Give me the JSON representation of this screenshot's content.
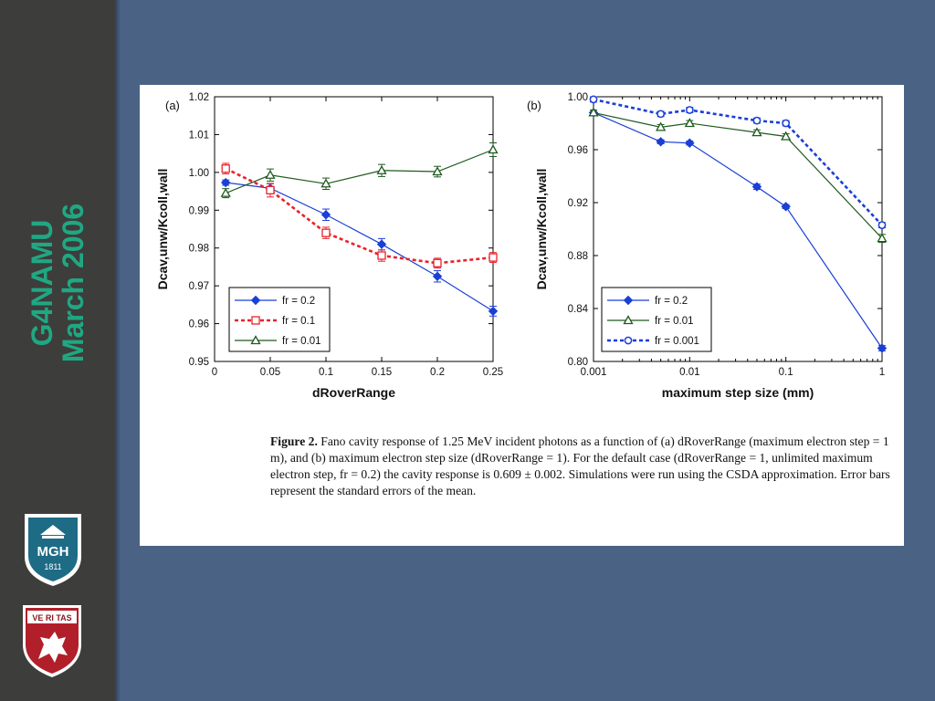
{
  "slide": {
    "vertical_title_line1": "G4NAMU",
    "vertical_title_line2": "March 2006",
    "mgh_logo_text": "MGH",
    "mgh_logo_year": "1811",
    "harvard_logo_text": "VE RI TAS",
    "colors": {
      "background": "#4a6385",
      "sidebar": "#3d3d3b",
      "title": "#1fa882"
    }
  },
  "caption": {
    "figure_label": "Figure 2.",
    "text": "Fano cavity response of 1.25 MeV incident photons as a function of (a) dRoverRange (maximum electron step = 1 m), and (b) maximum electron step size (dRoverRange = 1). For the default case (dRoverRange = 1, unlimited maximum electron step, fr = 0.2) the cavity response is 0.609 ± 0.002. Simulations were run using the CSDA approximation. Error bars represent the standard errors of the mean."
  },
  "chart_data": [
    {
      "panel": "(a)",
      "type": "line",
      "xlabel": "dRoverRange",
      "ylabel": "Dcav,unw/Kcoll,wall",
      "xlim": [
        0,
        0.25
      ],
      "ylim": [
        0.95,
        1.02
      ],
      "xticks": [
        "0",
        "0.05",
        "0.1",
        "0.15",
        "0.2",
        "0.25"
      ],
      "yticks": [
        "0.95",
        "0.96",
        "0.97",
        "0.98",
        "0.99",
        "1.00",
        "1.01",
        "1.02"
      ],
      "legend_position": "bottom-left",
      "x": [
        0.01,
        0.05,
        0.1,
        0.15,
        0.2,
        0.25
      ],
      "series": [
        {
          "name": "fr = 0.2",
          "color": "#1a3fd6",
          "dash": "solid",
          "marker": "diamond",
          "values": [
            0.9973,
            0.9958,
            0.9888,
            0.981,
            0.9725,
            0.9633
          ],
          "err": [
            0.0007,
            0.0012,
            0.0015,
            0.0015,
            0.0015,
            0.0013
          ]
        },
        {
          "name": "fr = 0.1",
          "color": "#e8232a",
          "dash": "dotted",
          "marker": "square",
          "values": [
            1.001,
            0.9953,
            0.984,
            0.978,
            0.976,
            0.9775
          ],
          "err": [
            0.0014,
            0.0018,
            0.0015,
            0.0015,
            0.0013,
            0.0013
          ]
        },
        {
          "name": "fr = 0.01",
          "color": "#1f5a1f",
          "dash": "solid",
          "marker": "triangle",
          "values": [
            0.9945,
            0.9993,
            0.997,
            1.0005,
            1.0002,
            1.006
          ],
          "err": [
            0.0012,
            0.0016,
            0.0015,
            0.0016,
            0.0014,
            0.0018
          ]
        }
      ]
    },
    {
      "panel": "(b)",
      "type": "line",
      "xlabel": "maximum step size (mm)",
      "ylabel": "Dcav,unw/Kcoll,wall",
      "xscale": "log",
      "xlim": [
        0.001,
        1
      ],
      "ylim": [
        0.8,
        1.0
      ],
      "xticks": [
        "0.001",
        "0.01",
        "0.1",
        "1"
      ],
      "yticks": [
        "0.80",
        "0.84",
        "0.88",
        "0.92",
        "0.96",
        "1.00"
      ],
      "legend_position": "bottom-left",
      "x": [
        0.001,
        0.005,
        0.01,
        0.05,
        0.1,
        1
      ],
      "series": [
        {
          "name": "fr = 0.2",
          "color": "#1a3fd6",
          "dash": "solid",
          "marker": "diamond",
          "values": [
            0.988,
            0.966,
            0.965,
            0.932,
            0.917,
            0.81
          ],
          "err": [
            0.002,
            0.0015,
            0.0015,
            0.002,
            0.0015,
            0.002
          ]
        },
        {
          "name": "fr = 0.01",
          "color": "#1f5a1f",
          "dash": "solid",
          "marker": "triangle",
          "values": [
            0.988,
            0.977,
            0.98,
            0.973,
            0.97,
            0.893
          ],
          "err": [
            0.002,
            0.002,
            0.002,
            0.002,
            0.002,
            0.003
          ]
        },
        {
          "name": "fr = 0.001",
          "color": "#1a3fd6",
          "dash": "dotted",
          "marker": "circle",
          "values": [
            0.998,
            0.987,
            0.99,
            0.982,
            0.98,
            0.903
          ],
          "err": [
            0.002,
            0.002,
            0.002,
            0.002,
            0.002,
            0.002
          ]
        }
      ]
    }
  ]
}
